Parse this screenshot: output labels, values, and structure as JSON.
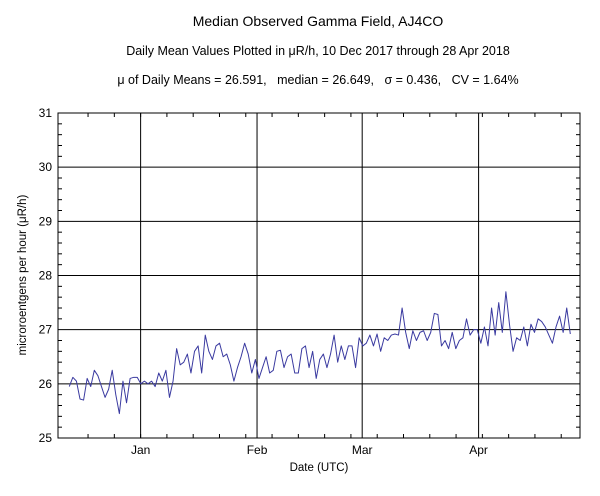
{
  "chart_data": {
    "type": "line",
    "title": "Median Observed Gamma Field, AJ4CO",
    "subtitle": "Daily Mean Values Plotted in μR/h, 10 Dec 2017 through 28 Apr 2018",
    "stats_line": "μ of Daily Means = 26.591,   median = 26.649,   σ = 0.436,   CV = 1.64%",
    "xlabel": "Date (UTC)",
    "ylabel": "microroentgens per hour (μR/h)",
    "ylim": [
      25,
      31
    ],
    "y_ticks": [
      "25",
      "26",
      "27",
      "28",
      "29",
      "30",
      "31"
    ],
    "x_ticks": [
      {
        "label": "Jan",
        "day": 22
      },
      {
        "label": "Feb",
        "day": 53
      },
      {
        "label": "Mar",
        "day": 81
      },
      {
        "label": "Apr",
        "day": 112
      }
    ],
    "x_range_days": [
      0,
      139
    ],
    "grid": true,
    "series_color": "#3a3aa0",
    "series": [
      {
        "name": "",
        "start_date": "2017-12-10",
        "values": [
          25.95,
          26.12,
          26.05,
          25.72,
          25.7,
          26.1,
          25.95,
          26.25,
          26.15,
          25.95,
          25.75,
          25.9,
          26.25,
          25.8,
          25.45,
          26.05,
          25.65,
          26.1,
          26.12,
          26.12,
          26.0,
          26.05,
          26.0,
          26.05,
          25.95,
          26.2,
          26.05,
          26.25,
          25.75,
          26.05,
          26.65,
          26.35,
          26.4,
          26.55,
          26.2,
          26.6,
          26.7,
          26.2,
          26.9,
          26.6,
          26.45,
          26.7,
          26.75,
          26.5,
          26.55,
          26.35,
          26.05,
          26.3,
          26.5,
          26.75,
          26.55,
          26.2,
          26.45,
          26.1,
          26.3,
          26.5,
          26.2,
          26.25,
          26.6,
          26.62,
          26.3,
          26.5,
          26.55,
          26.2,
          26.2,
          26.65,
          26.7,
          26.3,
          26.6,
          26.1,
          26.45,
          26.55,
          26.3,
          26.55,
          26.9,
          26.4,
          26.7,
          26.45,
          26.7,
          26.7,
          26.3,
          26.85,
          26.7,
          26.75,
          26.9,
          26.7,
          26.92,
          26.6,
          26.85,
          26.8,
          26.9,
          26.92,
          26.9,
          27.4,
          26.95,
          26.65,
          26.98,
          26.8,
          26.95,
          26.98,
          26.8,
          26.95,
          27.3,
          27.28,
          26.7,
          26.8,
          26.65,
          26.95,
          26.65,
          26.8,
          26.85,
          27.2,
          26.9,
          27.0,
          27.0,
          26.75,
          27.05,
          26.7,
          27.4,
          26.9,
          27.5,
          26.95,
          27.7,
          27.1,
          26.6,
          26.85,
          26.8,
          27.05,
          26.7,
          27.1,
          26.95,
          27.2,
          27.15,
          27.05,
          26.9,
          26.75,
          27.05,
          27.25,
          26.95,
          27.4,
          26.92
        ]
      }
    ]
  }
}
